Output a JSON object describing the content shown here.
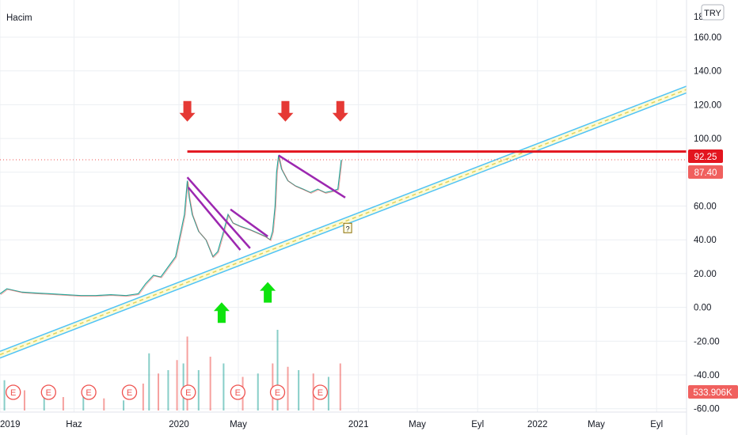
{
  "header": {
    "volume_label": "Hacim",
    "currency_button": "TRY"
  },
  "colors": {
    "up": "#26a69a",
    "down": "#ef5350",
    "channel_line": "#4fc3f7",
    "channel_mid": "#e0d35a",
    "resistance": "#e3151f",
    "trendline": "#9c27b0",
    "arrow_down": "#e53935",
    "arrow_up": "#0ee30e",
    "price_badge": "#f0605e"
  },
  "price_axis": {
    "ticks": [
      "160.00",
      "140.00",
      "120.00",
      "100.00",
      "80.00",
      "60.00",
      "40.00",
      "20.00",
      "0.00",
      "-20.00",
      "-40.00",
      "-60.00"
    ],
    "clipped_top_tick": "18"
  },
  "time_axis": {
    "ticks": [
      "2019",
      "Haz",
      "2020",
      "May",
      "2021",
      "May",
      "Eyl",
      "2022",
      "May",
      "Eyl"
    ]
  },
  "badges": {
    "resistance": "92.25",
    "last_price": "87.40",
    "volume": "533.906K"
  },
  "markers": {
    "earnings_symbol": "E",
    "unknown_symbol": "?"
  },
  "chart_data": {
    "type": "line",
    "ylim": [
      -62,
      182
    ],
    "x_range": [
      "2019-01-01",
      "2022-11-01"
    ],
    "x_ticks": [
      {
        "label": "2019",
        "date": "2019-01-01"
      },
      {
        "label": "Haz",
        "date": "2019-06-01"
      },
      {
        "label": "2020",
        "date": "2020-01-01"
      },
      {
        "label": "May",
        "date": "2020-05-01"
      },
      {
        "label": "2021",
        "date": "2021-01-01"
      },
      {
        "label": "May",
        "date": "2021-05-01"
      },
      {
        "label": "Eyl",
        "date": "2021-09-01"
      },
      {
        "label": "2022",
        "date": "2022-01-01"
      },
      {
        "label": "May",
        "date": "2022-05-01"
      },
      {
        "label": "Eyl",
        "date": "2022-09-01"
      }
    ],
    "price_series": [
      [
        "2019-01-01",
        8
      ],
      [
        "2019-01-15",
        11
      ],
      [
        "2019-02-15",
        9
      ],
      [
        "2019-03-15",
        8.5
      ],
      [
        "2019-04-15",
        8
      ],
      [
        "2019-05-15",
        7.5
      ],
      [
        "2019-06-15",
        7
      ],
      [
        "2019-07-15",
        7
      ],
      [
        "2019-08-15",
        7.5
      ],
      [
        "2019-09-15",
        7
      ],
      [
        "2019-10-10",
        8
      ],
      [
        "2019-10-25",
        14
      ],
      [
        "2019-11-10",
        19
      ],
      [
        "2019-11-25",
        18
      ],
      [
        "2019-12-10",
        24
      ],
      [
        "2019-12-25",
        30
      ],
      [
        "2020-01-05",
        45
      ],
      [
        "2020-01-12",
        55
      ],
      [
        "2020-01-18",
        75
      ],
      [
        "2020-01-22",
        65
      ],
      [
        "2020-01-28",
        55
      ],
      [
        "2020-02-10",
        45
      ],
      [
        "2020-02-25",
        40
      ],
      [
        "2020-03-10",
        30
      ],
      [
        "2020-03-20",
        33
      ],
      [
        "2020-04-01",
        45
      ],
      [
        "2020-04-10",
        55
      ],
      [
        "2020-04-20",
        50
      ],
      [
        "2020-05-05",
        48
      ],
      [
        "2020-05-25",
        46
      ],
      [
        "2020-06-10",
        44
      ],
      [
        "2020-06-25",
        42
      ],
      [
        "2020-07-05",
        40
      ],
      [
        "2020-07-10",
        45
      ],
      [
        "2020-07-15",
        60
      ],
      [
        "2020-07-18",
        80
      ],
      [
        "2020-07-22",
        90
      ],
      [
        "2020-07-28",
        82
      ],
      [
        "2020-08-10",
        75
      ],
      [
        "2020-08-25",
        72
      ],
      [
        "2020-09-10",
        70
      ],
      [
        "2020-09-25",
        68
      ],
      [
        "2020-10-10",
        70
      ],
      [
        "2020-10-25",
        68
      ],
      [
        "2020-11-10",
        69
      ],
      [
        "2020-11-20",
        70
      ],
      [
        "2020-11-27",
        87.4
      ]
    ],
    "volume_series": [
      [
        "2019-01-10",
        45
      ],
      [
        "2019-02-20",
        30
      ],
      [
        "2019-04-01",
        25
      ],
      [
        "2019-05-10",
        20
      ],
      [
        "2019-06-20",
        22
      ],
      [
        "2019-08-01",
        18
      ],
      [
        "2019-09-10",
        15
      ],
      [
        "2019-10-20",
        40
      ],
      [
        "2019-11-01",
        85
      ],
      [
        "2019-11-20",
        55
      ],
      [
        "2019-12-10",
        60
      ],
      [
        "2019-12-28",
        75
      ],
      [
        "2020-01-10",
        70
      ],
      [
        "2020-01-18",
        110
      ],
      [
        "2020-02-10",
        60
      ],
      [
        "2020-03-05",
        80
      ],
      [
        "2020-04-01",
        70
      ],
      [
        "2020-05-10",
        50
      ],
      [
        "2020-06-10",
        55
      ],
      [
        "2020-07-10",
        70
      ],
      [
        "2020-07-20",
        120
      ],
      [
        "2020-08-10",
        65
      ],
      [
        "2020-09-01",
        60
      ],
      [
        "2020-10-01",
        55
      ],
      [
        "2020-11-01",
        50
      ],
      [
        "2020-11-25",
        70
      ]
    ],
    "resistance_level": 92.25,
    "last_price": 87.4,
    "channel": {
      "lower": [
        [
          "2019-01-01",
          -30
        ],
        [
          "2022-11-01",
          127
        ]
      ],
      "upper": [
        [
          "2019-01-01",
          -26
        ],
        [
          "2022-11-01",
          131
        ]
      ]
    },
    "trendlines": [
      [
        [
          "2020-01-18",
          77
        ],
        [
          "2020-05-25",
          35
        ]
      ],
      [
        [
          "2020-01-20",
          71
        ],
        [
          "2020-05-05",
          34
        ]
      ],
      [
        [
          "2020-04-15",
          58
        ],
        [
          "2020-06-30",
          42
        ]
      ],
      [
        [
          "2020-07-22",
          90
        ],
        [
          "2020-12-05",
          65
        ]
      ]
    ],
    "down_arrows": [
      [
        "2020-01-18",
        110
      ],
      [
        "2020-08-05",
        110
      ],
      [
        "2020-11-25",
        110
      ]
    ],
    "up_arrows": [
      [
        "2020-03-28",
        3
      ],
      [
        "2020-06-30",
        15
      ]
    ],
    "earnings_dates": [
      "2019-01-28",
      "2019-04-10",
      "2019-07-01",
      "2019-09-22",
      "2020-01-20",
      "2020-04-30",
      "2020-07-20",
      "2020-10-15"
    ],
    "unknown_marker": [
      "2020-12-10",
      47
    ]
  }
}
